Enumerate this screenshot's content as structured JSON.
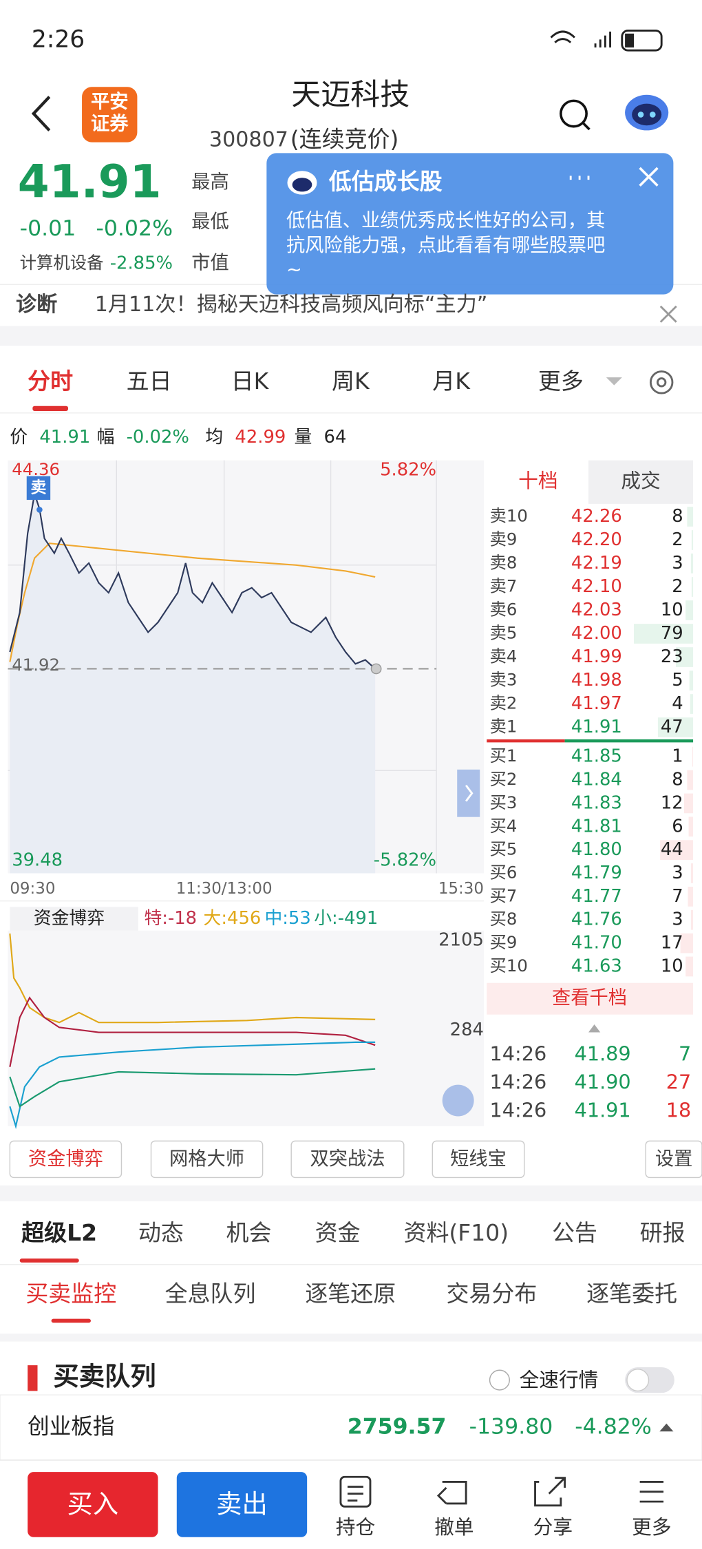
{
  "status_bar": {
    "time": "2:26"
  },
  "header": {
    "logo": [
      "平安",
      "证券"
    ],
    "title": "天迈科技",
    "code": "300807",
    "state": "(连续竞价)"
  },
  "quote": {
    "price": "41.91",
    "change": "-0.01",
    "change_pct": "-0.02%",
    "sector": "计算机设备",
    "sector_pct": "-2.85%",
    "labels": [
      "最高",
      "最低",
      "市值"
    ]
  },
  "popup": {
    "title": "低估成长股",
    "lines": [
      "低估值、业绩优秀成长性好的公司，其",
      "抗风险能力强，点此看看有哪些股票吧",
      "~"
    ]
  },
  "diagnosis": {
    "label": "诊断",
    "text": "1月11次！揭秘天迈科技高频风向标“主力”"
  },
  "chart_tabs": [
    "分时",
    "五日",
    "日K",
    "周K",
    "月K",
    "更多"
  ],
  "info": [
    {
      "label": "价",
      "value": "41.91"
    },
    {
      "label": "幅",
      "value": "-0.02%"
    },
    {
      "label": "均",
      "value": "42.99"
    },
    {
      "label": "量",
      "value": "64"
    }
  ],
  "chart": {
    "high": "44.36",
    "high_pct": "5.82%",
    "base": "41.92",
    "low": "39.48",
    "low_pct": "-5.82%",
    "times": [
      "09:30",
      "11:30/13:00",
      "15:30"
    ],
    "marker": "卖"
  },
  "fund": {
    "title": "资金博弈",
    "items": [
      "特:-18",
      "大:456",
      "中:53",
      "小:-491"
    ],
    "scale": [
      "2105",
      "284"
    ]
  },
  "order_book": {
    "tabs": [
      "十档",
      "成交"
    ],
    "asks": [
      {
        "label": "卖10",
        "price": "42.26",
        "volume": 8
      },
      {
        "label": "卖9",
        "price": "42.20",
        "volume": 2
      },
      {
        "label": "卖8",
        "price": "42.19",
        "volume": 3
      },
      {
        "label": "卖7",
        "price": "42.10",
        "volume": 2
      },
      {
        "label": "卖6",
        "price": "42.03",
        "volume": 10
      },
      {
        "label": "卖5",
        "price": "42.00",
        "volume": 79
      },
      {
        "label": "卖4",
        "price": "41.99",
        "volume": 23
      },
      {
        "label": "卖3",
        "price": "41.98",
        "volume": 5
      },
      {
        "label": "卖2",
        "price": "41.97",
        "volume": 4
      },
      {
        "label": "卖1",
        "price": "41.91",
        "volume": 47
      }
    ],
    "bids": [
      {
        "label": "买1",
        "price": "41.85",
        "volume": 1
      },
      {
        "label": "买2",
        "price": "41.84",
        "volume": 8
      },
      {
        "label": "买3",
        "price": "41.83",
        "volume": 12
      },
      {
        "label": "买4",
        "price": "41.81",
        "volume": 6
      },
      {
        "label": "买5",
        "price": "41.80",
        "volume": 44
      },
      {
        "label": "买6",
        "price": "41.79",
        "volume": 3
      },
      {
        "label": "买7",
        "price": "41.77",
        "volume": 7
      },
      {
        "label": "买8",
        "price": "41.76",
        "volume": 3
      },
      {
        "label": "买9",
        "price": "41.70",
        "volume": 17
      },
      {
        "label": "买10",
        "price": "41.63",
        "volume": 10
      }
    ],
    "more": "查看千档",
    "trades": [
      {
        "time": "14:26",
        "price": "41.89",
        "volume": 7
      },
      {
        "time": "14:26",
        "price": "41.90",
        "volume": 27
      },
      {
        "time": "14:26",
        "price": "41.91",
        "volume": 18
      }
    ]
  },
  "tools": [
    "资金博弈",
    "网格大师",
    "双突战法",
    "短线宝",
    "设置"
  ],
  "sections": [
    "超级L2",
    "动态",
    "机会",
    "资金",
    "资料(F10)",
    "公告",
    "研报"
  ],
  "subtabs": [
    "买卖监控",
    "全息队列",
    "逐笔还原",
    "交易分布",
    "逐笔委托"
  ],
  "queue": {
    "title": "买卖队列",
    "toggle": "全速行情"
  },
  "index": {
    "name": "创业板指",
    "value": "2759.57",
    "change": "-139.80",
    "pct": "-4.82%"
  },
  "actions": {
    "buy": "买入",
    "sell": "卖出",
    "nav": [
      "持仓",
      "撤单",
      "分享",
      "更多"
    ]
  }
}
